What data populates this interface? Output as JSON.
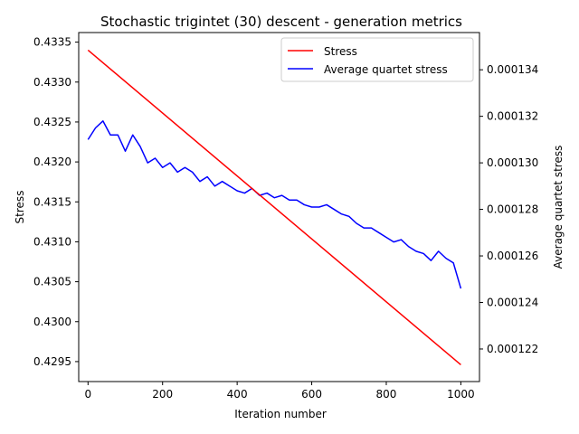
{
  "chart_data": {
    "type": "line",
    "title": "Stochastic trigintet (30) descent - generation metrics",
    "xlabel": "Iteration number",
    "ylabel": "Stress",
    "y2label": "Average quartet stress",
    "xlim": [
      -25,
      1050
    ],
    "ylim": [
      0.42925,
      0.43362
    ],
    "y2lim": [
      0.0001206,
      0.0001356
    ],
    "x_ticks": [
      0,
      200,
      400,
      600,
      800,
      1000
    ],
    "y_ticks": [
      0.4295,
      0.43,
      0.4305,
      0.431,
      0.4315,
      0.432,
      0.4325,
      0.433,
      0.4335
    ],
    "y_tick_labels": [
      "0.4295",
      "0.4300",
      "0.4305",
      "0.4310",
      "0.4315",
      "0.4320",
      "0.4325",
      "0.4330",
      "0.4335"
    ],
    "y2_ticks": [
      0.000122,
      0.000124,
      0.000126,
      0.000128,
      0.00013,
      0.000132,
      0.000134
    ],
    "y2_tick_labels": [
      "0.000122",
      "0.000124",
      "0.000126",
      "0.000128",
      "0.000130",
      "0.000132",
      "0.000134"
    ],
    "legend_position": "upper right",
    "grid": false,
    "series": [
      {
        "name": "Stress",
        "axis": "left",
        "color": "#ff0000",
        "x": [
          0,
          1000
        ],
        "y": [
          0.4334,
          0.42946
        ]
      },
      {
        "name": "Average quartet stress",
        "axis": "right",
        "color": "#0000ff",
        "x": [
          0,
          20,
          40,
          60,
          80,
          100,
          120,
          140,
          160,
          180,
          200,
          220,
          240,
          260,
          280,
          300,
          320,
          340,
          360,
          380,
          400,
          420,
          440,
          460,
          480,
          500,
          520,
          540,
          560,
          580,
          600,
          620,
          640,
          660,
          680,
          700,
          720,
          740,
          760,
          780,
          800,
          820,
          840,
          860,
          880,
          900,
          920,
          940,
          960,
          980,
          1000
        ],
        "y": [
          0.000131,
          0.0001315,
          0.0001318,
          0.0001312,
          0.0001312,
          0.0001305,
          0.0001312,
          0.0001307,
          0.00013,
          0.0001302,
          0.0001298,
          0.00013,
          0.0001296,
          0.0001298,
          0.0001296,
          0.0001292,
          0.0001294,
          0.000129,
          0.0001292,
          0.000129,
          0.0001288,
          0.0001287,
          0.0001289,
          0.0001286,
          0.0001287,
          0.0001285,
          0.0001286,
          0.0001284,
          0.0001284,
          0.0001282,
          0.0001281,
          0.0001281,
          0.0001282,
          0.000128,
          0.0001278,
          0.0001277,
          0.0001274,
          0.0001272,
          0.0001272,
          0.000127,
          0.0001268,
          0.0001266,
          0.0001267,
          0.0001264,
          0.0001262,
          0.0001261,
          0.0001258,
          0.0001262,
          0.0001259,
          0.0001257,
          0.0001246
        ]
      }
    ]
  }
}
